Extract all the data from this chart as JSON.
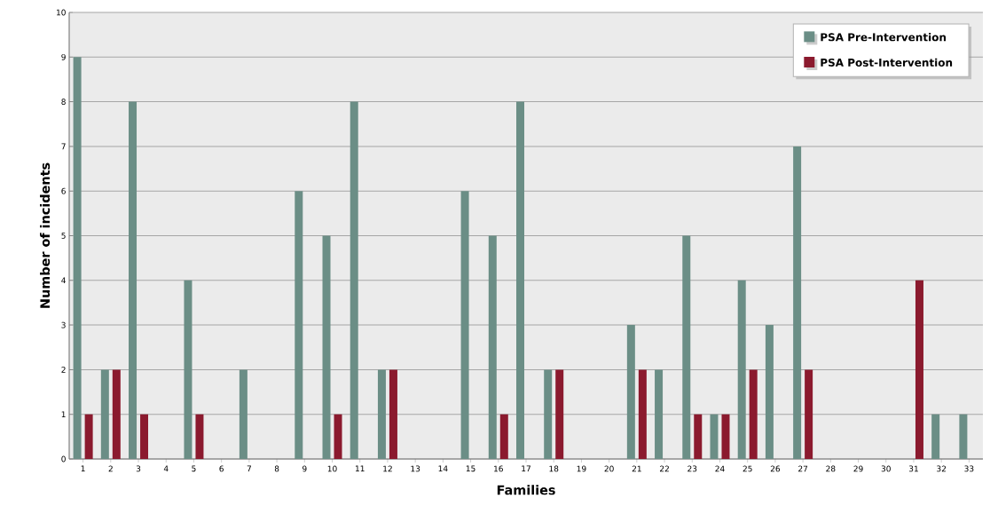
{
  "chart_data": {
    "type": "bar",
    "xlabel": "Families",
    "ylabel": "Number of incidents",
    "categories": [
      "1",
      "2",
      "3",
      "4",
      "5",
      "6",
      "7",
      "8",
      "9",
      "10",
      "11",
      "12",
      "13",
      "14",
      "15",
      "16",
      "17",
      "18",
      "19",
      "20",
      "21",
      "22",
      "23",
      "24",
      "25",
      "26",
      "27",
      "28",
      "29",
      "30",
      "31",
      "32",
      "33"
    ],
    "series": [
      {
        "name": "PSA Pre-Intervention",
        "color": "#6b8e86",
        "values": [
          9,
          2,
          8,
          0,
          4,
          0,
          2,
          0,
          6,
          5,
          8,
          2,
          0,
          0,
          6,
          5,
          8,
          2,
          0,
          0,
          3,
          2,
          5,
          1,
          4,
          3,
          7,
          0,
          0,
          0,
          0,
          1,
          1
        ]
      },
      {
        "name": "PSA Post-Intervention",
        "color": "#8b1a2e",
        "values": [
          1,
          2,
          1,
          0,
          1,
          0,
          0,
          0,
          0,
          1,
          0,
          2,
          0,
          0,
          0,
          1,
          0,
          2,
          0,
          0,
          2,
          0,
          1,
          1,
          2,
          0,
          2,
          0,
          0,
          0,
          4,
          0,
          0
        ]
      }
    ],
    "ylim": [
      0,
      10
    ],
    "yticks": [
      0,
      1,
      2,
      3,
      4,
      5,
      6,
      7,
      8,
      9,
      10
    ],
    "grid": "y",
    "legend": "top right"
  }
}
